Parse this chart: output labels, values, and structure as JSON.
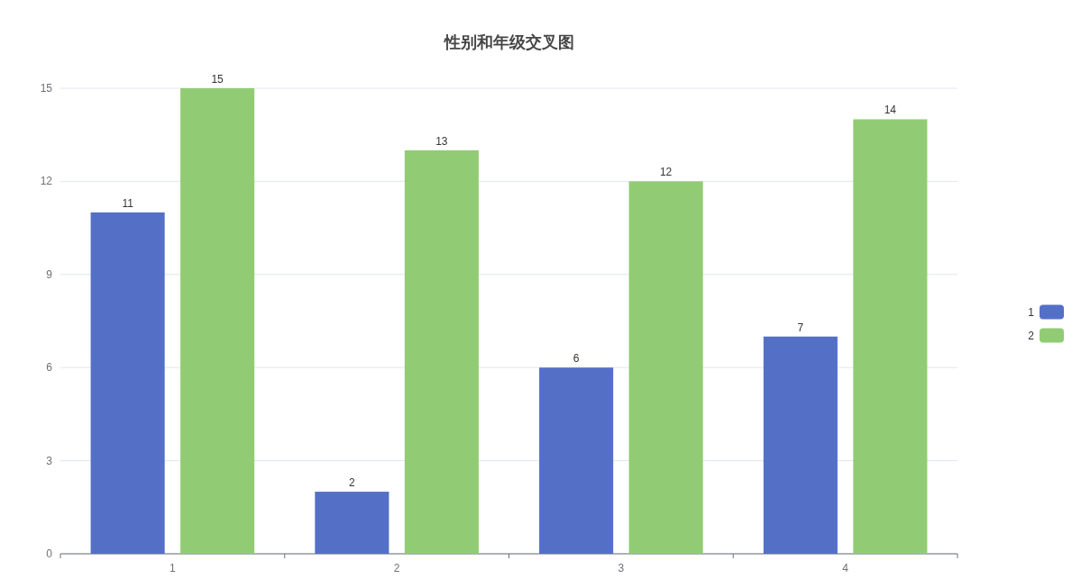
{
  "chart_data": {
    "type": "bar",
    "title": "性别和年级交叉图",
    "categories": [
      "1",
      "2",
      "3",
      "4"
    ],
    "series": [
      {
        "name": "1",
        "color": "#5470c6",
        "values": [
          11,
          2,
          6,
          7
        ]
      },
      {
        "name": "2",
        "color": "#91cc75",
        "values": [
          15,
          13,
          12,
          14
        ]
      }
    ],
    "ylim": [
      0,
      15
    ],
    "yticks": [
      0,
      3,
      6,
      9,
      12,
      15
    ],
    "grid": "y",
    "legend": "right",
    "data_labels": true
  }
}
